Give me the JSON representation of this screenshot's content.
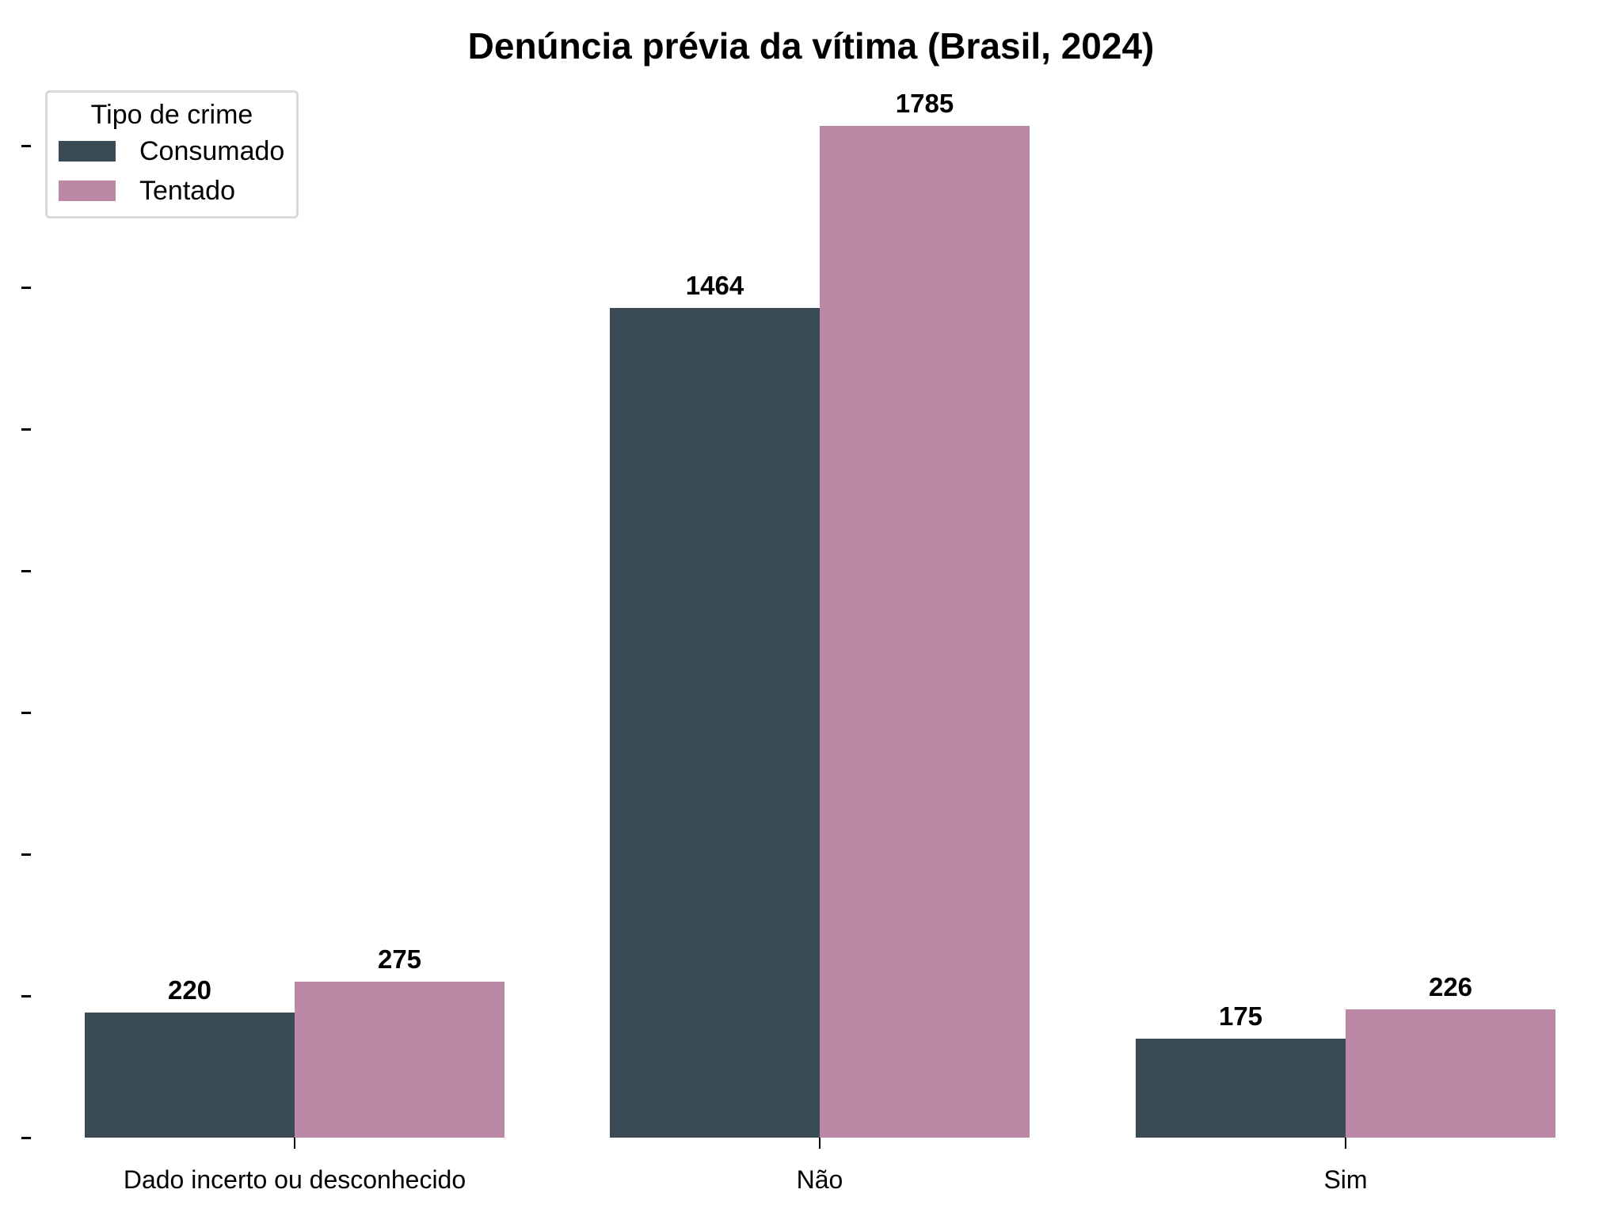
{
  "title": "Denúncia prévia da vítima (Brasil, 2024)",
  "legend": {
    "title": "Tipo de crime",
    "items": [
      {
        "label": "Consumado",
        "color": "#3b4b56"
      },
      {
        "label": "Tentado",
        "color": "#bb89a6"
      }
    ]
  },
  "colors": {
    "consumado": "#3b4b56",
    "tentado": "#bb89a6"
  },
  "chart_data": {
    "type": "bar",
    "title": "Denúncia prévia da vítima (Brasil, 2024)",
    "xlabel": "",
    "ylabel": "",
    "categories": [
      "Dado incerto ou desconhecido",
      "Não",
      "Sim"
    ],
    "series": [
      {
        "name": "Consumado",
        "values": [
          220,
          1464,
          175
        ],
        "color": "#3b4b56"
      },
      {
        "name": "Tentado",
        "values": [
          275,
          1785,
          226
        ],
        "color": "#bb89a6"
      }
    ],
    "ylim": [
      0,
      1785
    ],
    "yticks": [
      0,
      250,
      500,
      750,
      1000,
      1250,
      1500,
      1750
    ],
    "ytick_labels_visible": false,
    "grid": false,
    "legend_position": "upper left",
    "legend_title": "Tipo de crime",
    "bar_labels": true
  },
  "labels": {
    "g0_c": "220",
    "g0_t": "275",
    "g1_c": "1464",
    "g1_t": "1785",
    "g2_c": "175",
    "g2_t": "226"
  }
}
